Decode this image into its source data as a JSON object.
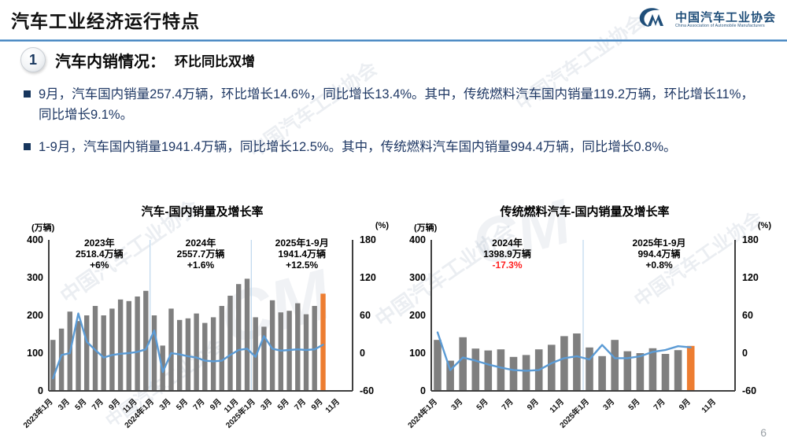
{
  "header": {
    "title": "汽车工业经济运行特点",
    "logo_mark": "CM",
    "logo_cn": "中国汽车工业协会",
    "logo_en": "China Association of Automobile Manufacturers"
  },
  "section": {
    "number": "1",
    "title": "汽车内销情况：",
    "subtitle": "环比同比双增"
  },
  "bullets": [
    {
      "text": "9月，汽车国内销量257.4万辆，环比增长14.6%，同比增长13.4%。其中，传统燃料汽车国内销量119.2万辆，环比增长11%，同比增长9.1%。"
    },
    {
      "text": "1-9月，汽车国内销量1941.4万辆，同比增长12.5%。其中，传统燃料汽车国内销量994.4万辆，同比增长0.8%。"
    }
  ],
  "watermark_text": "中国汽车工业协会",
  "page_number": "6",
  "colors": {
    "bar": "#7F7F7F",
    "highlight": "#ED7D31",
    "line": "#5B9BD5",
    "axis": "#3f3f3f",
    "separator": "#BDD7EE",
    "red": "#FF2222",
    "black": "#000000"
  },
  "chart_data": [
    {
      "type": "bar",
      "title": "汽车-国内销量及增长率",
      "unit_left": "(万辆)",
      "unit_right": "(%)",
      "slots": 36,
      "xtick_labels": [
        "2023年1月",
        "3月",
        "5月",
        "7月",
        "9月",
        "11月",
        "2024年1月",
        "3月",
        "5月",
        "7月",
        "9月",
        "11月",
        "2025年1月",
        "3月",
        "5月",
        "7月",
        "9月",
        "11月"
      ],
      "bar_series": "国内销量(万辆)",
      "bars": [
        135,
        165,
        210,
        185,
        200,
        225,
        200,
        218,
        242,
        238,
        250,
        265,
        200,
        120,
        218,
        188,
        192,
        205,
        180,
        195,
        225,
        252,
        283,
        297,
        195,
        170,
        240,
        208,
        212,
        232,
        203,
        225,
        257.4
      ],
      "line_series": "增长率(%)",
      "line": [
        -40,
        -3,
        0,
        63,
        18,
        5,
        -7,
        -3,
        -1,
        0,
        2,
        6,
        36,
        -30,
        0,
        -2,
        -5,
        -7,
        -12,
        -13,
        -12,
        -3,
        5,
        7,
        -6,
        27,
        7,
        4,
        5,
        6,
        5,
        6,
        13.4
      ],
      "ylim": [
        0,
        400
      ],
      "yticks": [
        0,
        100,
        200,
        300,
        400
      ],
      "y2lim": [
        -60,
        180
      ],
      "y2ticks": [
        -60,
        0,
        60,
        120,
        180
      ],
      "grid": false,
      "highlight_last": true,
      "annotations": [
        {
          "lines": [
            "2023年",
            "2518.4万辆",
            "+6%"
          ],
          "value_color": "#000000"
        },
        {
          "lines": [
            "2024年",
            "2557.7万辆",
            "+1.6%"
          ],
          "value_color": "#000000"
        },
        {
          "lines": [
            "2025年1-9月",
            "1941.4万辆",
            "+12.5%"
          ],
          "value_color": "#000000"
        }
      ]
    },
    {
      "type": "bar",
      "title": "传统燃料汽车-国内销量及增长率",
      "unit_left": "(万辆)",
      "unit_right": "(%)",
      "slots": 24,
      "xtick_labels": [
        "2024年1月",
        "3月",
        "5月",
        "7月",
        "9月",
        "11月",
        "2025年1月",
        "3月",
        "5月",
        "7月",
        "9月",
        "11月"
      ],
      "bar_series": "国内销量(万辆)",
      "bars": [
        135,
        80,
        142,
        112,
        107,
        110,
        90,
        95,
        110,
        122,
        145,
        152,
        115,
        92,
        135,
        105,
        100,
        113,
        98,
        108,
        119.2
      ],
      "line_series": "增长率(%)",
      "line": [
        33,
        -27,
        -7,
        -12,
        -18,
        -23,
        -27,
        -28,
        -27,
        -16,
        -8,
        -5,
        -10,
        13,
        -8,
        -8,
        -5,
        2,
        5,
        11,
        9.1
      ],
      "ylim": [
        0,
        400
      ],
      "yticks": [
        0,
        100,
        200,
        300,
        400
      ],
      "y2lim": [
        -60,
        180
      ],
      "y2ticks": [
        -60,
        0,
        60,
        120,
        180
      ],
      "grid": false,
      "highlight_last": true,
      "annotations": [
        {
          "lines": [
            "2024年",
            "1398.9万辆",
            "-17.3%"
          ],
          "value_color": "#FF2222"
        },
        {
          "lines": [
            "2025年1-9月",
            "994.4万辆",
            "+0.8%"
          ],
          "value_color": "#000000"
        }
      ]
    }
  ]
}
